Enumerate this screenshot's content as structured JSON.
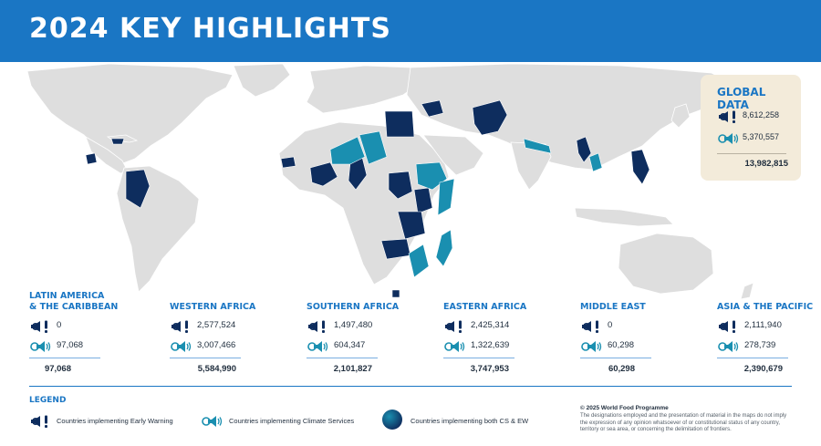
{
  "header": {
    "title": "2024 KEY HIGHLIGHTS"
  },
  "colors": {
    "brand_blue": "#1a76c4",
    "early_warning": "#0e2d5e",
    "climate_services": "#1a8fb0",
    "land": "#dedede",
    "global_box_bg": "#f3ebda"
  },
  "icons": {
    "early_warning": "early-warning-icon",
    "climate_services": "climate-services-icon"
  },
  "global": {
    "title": "GLOBAL DATA",
    "early_warning": "8,612,258",
    "climate_services": "5,370,557",
    "total": "13,982,815"
  },
  "regions": [
    {
      "title": "LATIN AMERICA\n& THE CARIBBEAN",
      "early_warning": "0",
      "climate_services": "97,068",
      "total": "97,068"
    },
    {
      "title": "WESTERN AFRICA",
      "early_warning": "2,577,524",
      "climate_services": "3,007,466",
      "total": "5,584,990"
    },
    {
      "title": "SOUTHERN AFRICA",
      "early_warning": "1,497,480",
      "climate_services": "604,347",
      "total": "2,101,827"
    },
    {
      "title": "EASTERN AFRICA",
      "early_warning": "2,425,314",
      "climate_services": "1,322,639",
      "total": "3,747,953"
    },
    {
      "title": "MIDDLE EAST",
      "early_warning": "0",
      "climate_services": "60,298",
      "total": "60,298"
    },
    {
      "title": "ASIA & THE PACIFIC",
      "early_warning": "2,111,940",
      "climate_services": "278,739",
      "total": "2,390,679"
    }
  ],
  "legend": {
    "title": "LEGEND",
    "early_warning": "Countries implementing Early Warning",
    "climate_services": "Countries implementing Climate Services",
    "both": "Countries implementing both CS & EW"
  },
  "footer": {
    "copyright": "© 2025 World Food Programme",
    "disclaimer": "The designations employed and the presentation of material in the maps do not imply the expression of any opinion whatsoever of or constitutional status of any country, territory or sea area, or concerning the delimitation of frontiers."
  }
}
